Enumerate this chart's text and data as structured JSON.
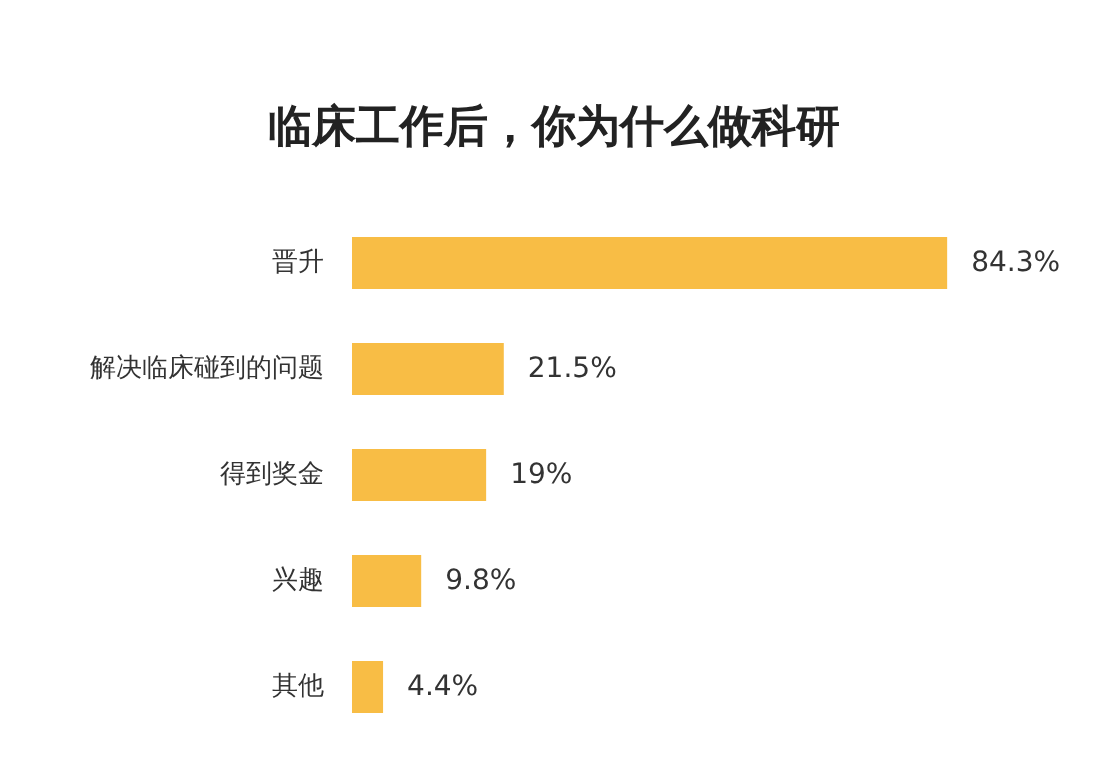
{
  "chart_data": {
    "type": "bar",
    "orientation": "horizontal",
    "title": "临床工作后，你为什么做科研",
    "categories": [
      "晋升",
      "解决临床碰到的问题",
      "得到奖金",
      "兴趣",
      "其他"
    ],
    "values": [
      84.3,
      21.5,
      19,
      9.8,
      4.4
    ],
    "value_labels": [
      "84.3%",
      "21.5%",
      "19%",
      "9.8%",
      "4.4%"
    ],
    "color": "#f8bd45"
  }
}
